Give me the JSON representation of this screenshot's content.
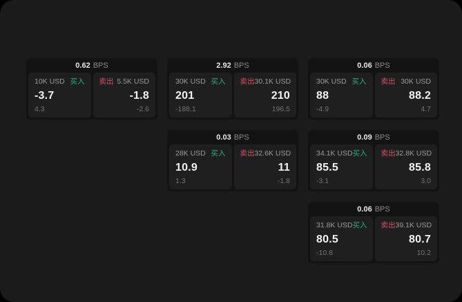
{
  "labels": {
    "bps_unit": "BPS",
    "buy": "买入",
    "sell": "卖出"
  },
  "colors": {
    "background_outer": "#000000",
    "surface": "#1b1b1c",
    "card": "#131314",
    "panel": "#1f1f20",
    "buy_green": "#2fab7d",
    "sell_red": "#d25068"
  },
  "cards": [
    {
      "bps": "0.62",
      "buy": {
        "amount": "10K USD",
        "price": "-3.7",
        "sub": "4.3"
      },
      "sell": {
        "amount": "5.5K USD",
        "price": "-1.8",
        "sub": "-2.6"
      }
    },
    {
      "bps": "2.92",
      "buy": {
        "amount": "30K USD",
        "price": "201",
        "sub": "-188.1"
      },
      "sell": {
        "amount": "30.1K USD",
        "price": "210",
        "sub": "196.5"
      }
    },
    {
      "bps": "0.06",
      "buy": {
        "amount": "30K USD",
        "price": "88",
        "sub": "-4.9"
      },
      "sell": {
        "amount": "30K USD",
        "price": "88.2",
        "sub": "4.7"
      }
    },
    {
      "bps": "0.03",
      "buy": {
        "amount": "28K USD",
        "price": "10.9",
        "sub": "1.3"
      },
      "sell": {
        "amount": "32.6K USD",
        "price": "11",
        "sub": "-1.8"
      }
    },
    {
      "bps": "0.09",
      "buy": {
        "amount": "34.1K USD",
        "price": "85.5",
        "sub": "-3.1"
      },
      "sell": {
        "amount": "32.8K USD",
        "price": "85.8",
        "sub": "3.0"
      }
    },
    {
      "bps": "0.06",
      "buy": {
        "amount": "31.8K USD",
        "price": "80.5",
        "sub": "-10.8"
      },
      "sell": {
        "amount": "39.1K USD",
        "price": "80.7",
        "sub": "10.2"
      }
    }
  ]
}
